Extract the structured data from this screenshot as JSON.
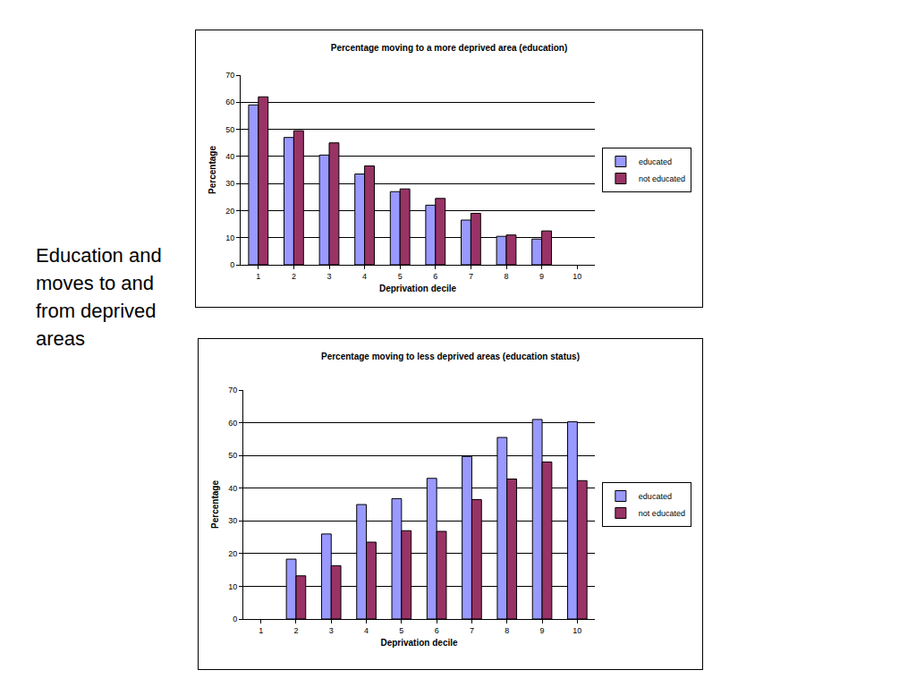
{
  "slide_text": "Education and moves to and from deprived areas",
  "chart_data": [
    {
      "type": "bar",
      "title": "Percentage moving to a more deprived area (education)",
      "x_label": "Deprivation decile",
      "y_label": "Percentage",
      "categories": [
        1,
        2,
        3,
        4,
        5,
        6,
        7,
        8,
        9,
        10
      ],
      "series": [
        {
          "name": "educated",
          "color": "#9999ff",
          "values": [
            59,
            47,
            40.5,
            33.5,
            27,
            22,
            16.5,
            10.5,
            9.5,
            null
          ]
        },
        {
          "name": "not educated",
          "color": "#993366",
          "values": [
            62,
            49.5,
            45,
            36.5,
            28,
            24.5,
            19,
            11,
            12.5,
            null
          ]
        }
      ],
      "ylim": [
        0,
        70
      ],
      "yticks": [
        0,
        10,
        20,
        30,
        40,
        50,
        60,
        70
      ],
      "grid": true,
      "legend": "right"
    },
    {
      "type": "bar",
      "title": "Percentage moving to less deprived areas (education status)",
      "x_label": "Deprivation decile",
      "y_label": "Percentage",
      "categories": [
        1,
        2,
        3,
        4,
        5,
        6,
        7,
        8,
        9,
        10
      ],
      "series": [
        {
          "name": "educated",
          "color": "#9999ff",
          "values": [
            null,
            18.3,
            26,
            35,
            36.8,
            43,
            49.7,
            55.5,
            61,
            60.3
          ]
        },
        {
          "name": "not educated",
          "color": "#993366",
          "values": [
            null,
            13.2,
            16.3,
            23.5,
            27,
            26.8,
            36.5,
            42.8,
            48,
            42.3
          ]
        }
      ],
      "ylim": [
        0,
        70
      ],
      "yticks": [
        0,
        10,
        20,
        30,
        40,
        50,
        60,
        70
      ],
      "grid": true,
      "legend": "right"
    }
  ]
}
